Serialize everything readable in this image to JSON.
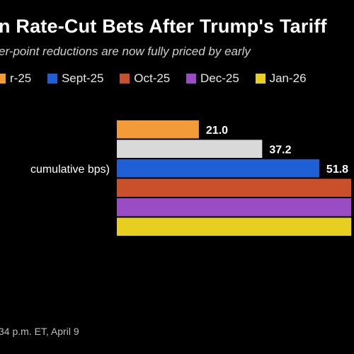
{
  "title": "n Rate-Cut Bets After Trump's Tariff",
  "subtitle": "er-point reductions are now fully priced by early",
  "legend": [
    {
      "label": "r-25",
      "color": "#f29b38"
    },
    {
      "label": "Sept-25",
      "color": "#1f5fd6"
    },
    {
      "label": "Oct-25",
      "color": "#c9502a"
    },
    {
      "label": "Dec-25",
      "color": "#9a4cc4"
    },
    {
      "label": "Jan-26",
      "color": "#e6cf1f"
    }
  ],
  "footer": "34 p.m. ET, April 9",
  "chart_data": {
    "type": "bar",
    "orientation": "horizontal",
    "category_label": "cumulative bps)",
    "series": [
      {
        "name": "r-25",
        "value": 21.0,
        "value_label": "21.0",
        "color": "#f29b38"
      },
      {
        "value": 37.2,
        "value_label": "37.2",
        "color": "#d9d9d9"
      },
      {
        "name": "Sept-25",
        "value": 51.8,
        "value_label": "51.8",
        "color": "#1f5fd6"
      },
      {
        "name": "Oct-25",
        "value": 60,
        "color": "#c9502a"
      },
      {
        "name": "Dec-25",
        "value": 60,
        "color": "#9a4cc4"
      },
      {
        "name": "Jan-26",
        "value": 60,
        "color": "#e6cf1f"
      }
    ]
  }
}
